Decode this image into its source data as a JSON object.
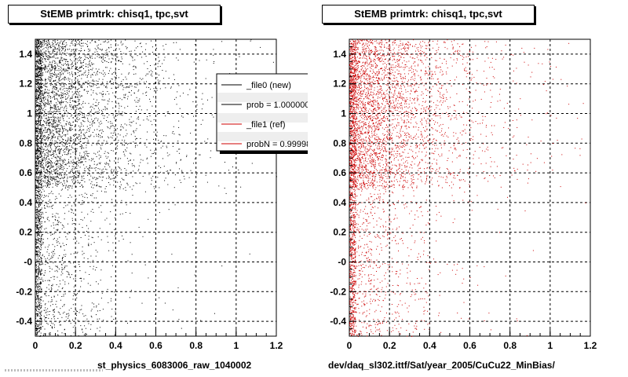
{
  "panels": [
    {
      "title": "StEMB primtrk: chisq1, tpc,svt",
      "footer": "st_physics_6083006_raw_1040002"
    },
    {
      "title": "StEMB primtrk: chisq1, tpc,svt",
      "footer": "dev/daq_sl302.ittf/Sat/year_2005/CuCu22_MinBias/"
    }
  ],
  "legend": {
    "entries": [
      {
        "label": "_file0 (new)",
        "color": "#000000"
      },
      {
        "label": "prob = 1.000000",
        "color": "#000000"
      },
      {
        "label": "_file1 (ref)",
        "color": "#cc0000"
      },
      {
        "label": "probN = 0.999987",
        "color": "#cc0000"
      }
    ]
  },
  "chart_data": [
    {
      "type": "scatter",
      "title": "StEMB primtrk: chisq1, tpc,svt",
      "xlabel": "st_physics_6083006_raw_1040002",
      "ylabel": "",
      "xlim": [
        0,
        1.2
      ],
      "ylim": [
        -0.5,
        1.5
      ],
      "xticks": [
        "0",
        "0.2",
        "0.4",
        "0.6",
        "0.8",
        "1",
        "1.2"
      ],
      "yticks": [
        "-0.4",
        "-0.2",
        "-0",
        "0.2",
        "0.4",
        "0.6",
        "0.8",
        "1",
        "1.2",
        "1.4"
      ],
      "grid": true,
      "marker_color": "#000000",
      "series": [
        {
          "name": "_file0 (new)",
          "density_profile": "x-decaying, densest near x=0, band at y 0.5-1.5"
        }
      ]
    },
    {
      "type": "scatter",
      "title": "StEMB primtrk: chisq1, tpc,svt",
      "xlabel": "dev/daq_sl302.ittf/Sat/year_2005/CuCu22_MinBias/",
      "ylabel": "",
      "xlim": [
        0,
        1.2
      ],
      "ylim": [
        -0.5,
        1.5
      ],
      "xticks": [
        "0",
        "0.2",
        "0.4",
        "0.6",
        "0.8",
        "1",
        "1.2"
      ],
      "yticks": [
        "-0.4",
        "-0.2",
        "-0",
        "0.2",
        "0.4",
        "0.6",
        "0.8",
        "1",
        "1.2",
        "1.4"
      ],
      "grid": true,
      "marker_color": "#cc0000",
      "series": [
        {
          "name": "_file1 (ref)",
          "density_profile": "x-decaying, densest near x=0, band at y 0.5-1.5"
        }
      ]
    }
  ]
}
